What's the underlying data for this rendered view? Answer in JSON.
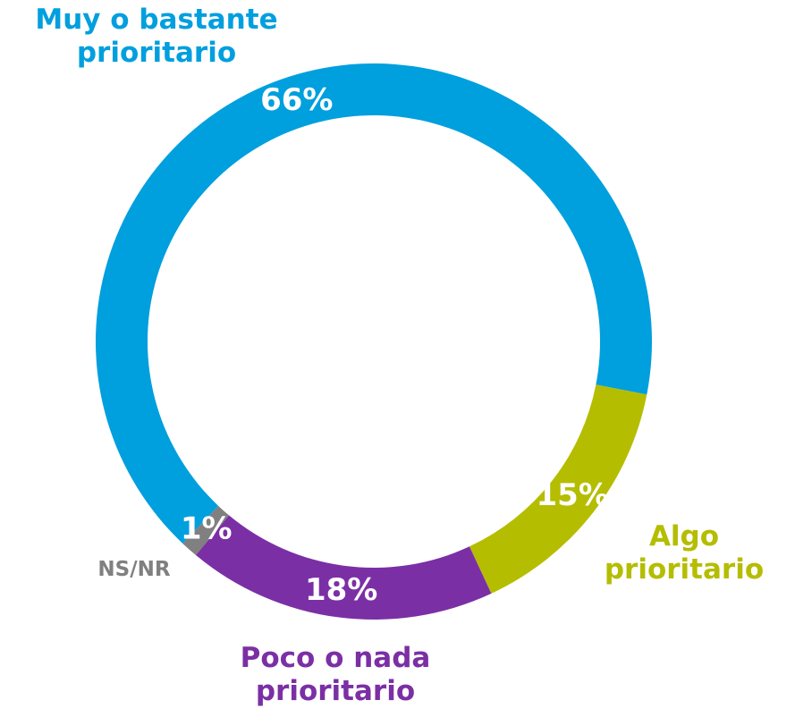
{
  "chart_data": {
    "type": "donut",
    "categories": [
      "Muy o bastante prioritario",
      "Algo prioritario",
      "Poco o nada prioritario",
      "NS/NR"
    ],
    "values": [
      66,
      15,
      18,
      1
    ],
    "value_labels": [
      "66%",
      "15%",
      "18%",
      "1%"
    ],
    "colors": [
      "#009fde",
      "#b5bd00",
      "#7b2fa5",
      "#808080"
    ]
  }
}
